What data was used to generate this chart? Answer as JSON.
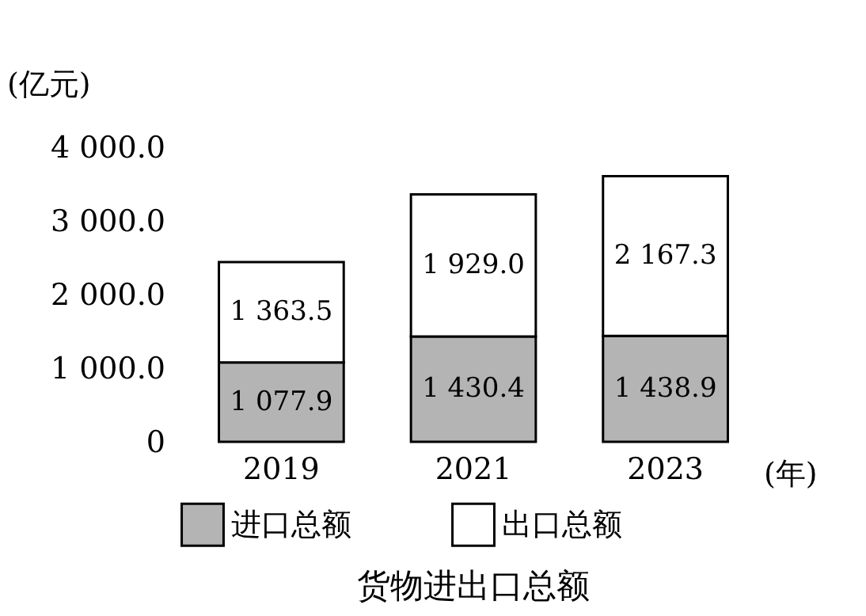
{
  "chart_data": {
    "type": "bar",
    "title": "货物进出口总额",
    "xlabel": "(年)",
    "ylabel": "(亿元)",
    "categories": [
      "2019",
      "2021",
      "2023"
    ],
    "stacked": true,
    "ylim": [
      0,
      4000
    ],
    "yticks": [
      0,
      {
        "value": 1000,
        "label": "1 000.0"
      },
      {
        "value": 2000,
        "label": "2 000.0"
      },
      {
        "value": 3000,
        "label": "3 000.0"
      },
      {
        "value": 4000,
        "label": "4 000.0"
      }
    ],
    "legend": "bottom",
    "series": [
      {
        "name": "进口总额",
        "color": "#b4b4b4",
        "values": [
          1077.9,
          1430.4,
          1438.9
        ],
        "value_labels": [
          "1 077.9",
          "1 430.4",
          "1 438.9"
        ]
      },
      {
        "name": "出口总额",
        "color": "#ffffff",
        "values": [
          1363.5,
          1929.0,
          2167.3
        ],
        "value_labels": [
          "1 363.5",
          "1 929.0",
          "2 167.3"
        ]
      }
    ]
  }
}
